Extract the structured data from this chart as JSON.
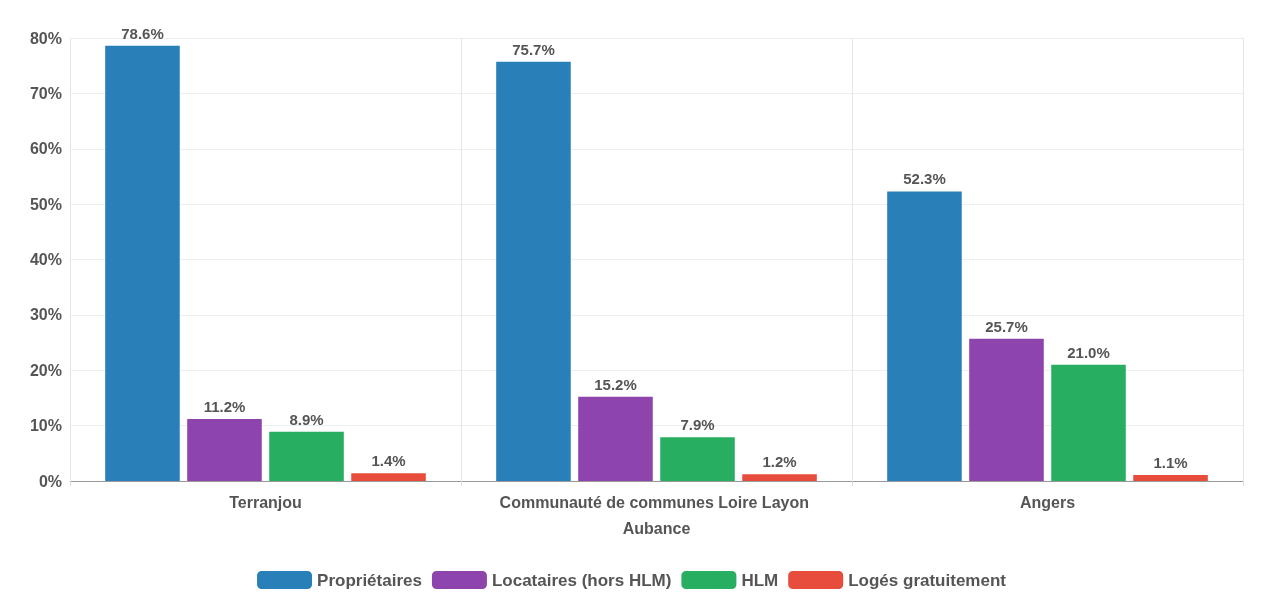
{
  "chart_data": {
    "type": "bar",
    "categories": [
      "Terranjou",
      "Communauté de communes Loire Layon Aubance",
      "Angers"
    ],
    "series": [
      {
        "name": "Propriétaires",
        "color": "#2980b9",
        "values": [
          78.6,
          75.7,
          52.3
        ],
        "value_labels": [
          "78.6%",
          "75.7%",
          "52.3%"
        ]
      },
      {
        "name": "Locataires (hors HLM)",
        "color": "#8e44ad",
        "values": [
          11.2,
          15.2,
          25.7
        ],
        "value_labels": [
          "11.2%",
          "15.2%",
          "25.7%"
        ]
      },
      {
        "name": "HLM",
        "color": "#27ae60",
        "values": [
          8.9,
          7.9,
          21.0
        ],
        "value_labels": [
          "8.9%",
          "7.9%",
          "21.0%"
        ]
      },
      {
        "name": "Logés gratuitement",
        "color": "#e74c3c",
        "values": [
          1.4,
          1.2,
          1.1
        ],
        "value_labels": [
          "1.4%",
          "1.2%",
          "1.1%"
        ]
      }
    ],
    "ylim": [
      0,
      80
    ],
    "yticks": [
      {
        "value": 0,
        "label": "0%"
      },
      {
        "value": 10,
        "label": "10%"
      },
      {
        "value": 20,
        "label": "20%"
      },
      {
        "value": 30,
        "label": "30%"
      },
      {
        "value": 40,
        "label": "40%"
      },
      {
        "value": 50,
        "label": "50%"
      },
      {
        "value": 60,
        "label": "60%"
      },
      {
        "value": 70,
        "label": "70%"
      },
      {
        "value": 80,
        "label": "80%"
      }
    ],
    "grid": true,
    "legend": "bottom"
  }
}
